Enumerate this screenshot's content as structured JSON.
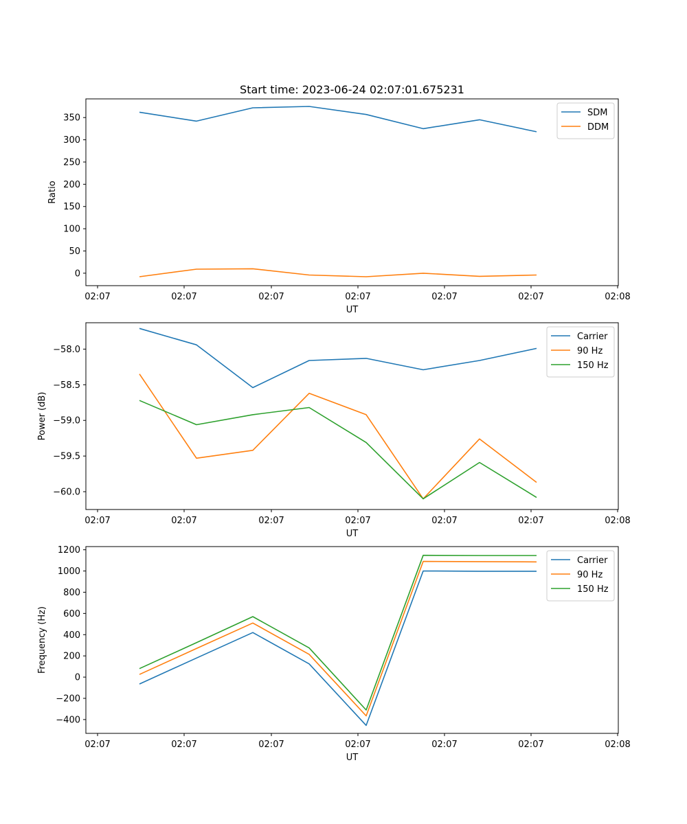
{
  "chart_data": [
    {
      "type": "line",
      "title": "Start time: 2023-06-24 02:07:01.675231",
      "xlabel": "UT",
      "ylabel": "Ratio",
      "x_tick_labels": [
        "02:07",
        "02:07",
        "02:07",
        "02:07",
        "02:07",
        "02:07",
        "02:07",
        "02:08"
      ],
      "yticks": [
        0,
        50,
        100,
        150,
        200,
        250,
        300,
        350
      ],
      "ylim": [
        -28,
        392
      ],
      "legend": "top-right",
      "grid": false,
      "series": [
        {
          "name": "SDM",
          "color": "#1f77b4",
          "values": [
            362,
            342,
            372,
            375,
            357,
            325,
            345,
            318
          ]
        },
        {
          "name": "DDM",
          "color": "#ff7f0e",
          "values": [
            -8,
            9,
            10,
            -4,
            -8,
            0,
            -7,
            -4
          ]
        }
      ]
    },
    {
      "type": "line",
      "title": "",
      "xlabel": "UT",
      "ylabel": "Power (dB)",
      "x_tick_labels": [
        "02:07",
        "02:07",
        "02:07",
        "02:07",
        "02:07",
        "02:07",
        "02:07",
        "02:08"
      ],
      "yticks": [
        -58.0,
        -58.5,
        -59.0,
        -59.5,
        -60.0
      ],
      "ytick_labels": [
        "−58.0",
        "−58.5",
        "−59.0",
        "−59.5",
        "−60.0"
      ],
      "ylim": [
        -60.25,
        -57.63
      ],
      "legend": "top-right",
      "grid": false,
      "series": [
        {
          "name": "Carrier",
          "color": "#1f77b4",
          "values": [
            -57.71,
            -57.94,
            -58.54,
            -58.16,
            -58.13,
            -58.29,
            -58.16,
            -57.99
          ]
        },
        {
          "name": "90 Hz",
          "color": "#ff7f0e",
          "values": [
            -58.35,
            -59.53,
            -59.42,
            -58.62,
            -58.92,
            -60.1,
            -59.26,
            -59.87
          ]
        },
        {
          "name": "150 Hz",
          "color": "#2ca02c",
          "values": [
            -58.72,
            -59.06,
            -58.92,
            -58.82,
            -59.31,
            -60.1,
            -59.59,
            -60.08
          ]
        }
      ]
    },
    {
      "type": "line",
      "title": "",
      "xlabel": "UT",
      "ylabel": "Frequency (Hz)",
      "x_tick_labels": [
        "02:07",
        "02:07",
        "02:07",
        "02:07",
        "02:07",
        "02:07",
        "02:07",
        "02:08"
      ],
      "yticks": [
        -400,
        -200,
        0,
        200,
        400,
        600,
        800,
        1000,
        1200
      ],
      "ytick_labels": [
        "−400",
        "−200",
        "0",
        "200",
        "400",
        "600",
        "800",
        "1000",
        "1200"
      ],
      "ylim": [
        -530,
        1230
      ],
      "legend": "top-right",
      "grid": false,
      "series": [
        {
          "name": "Carrier",
          "color": "#1f77b4",
          "values": [
            -65,
            180,
            420,
            125,
            -455,
            1000,
            998,
            998
          ]
        },
        {
          "name": "90 Hz",
          "color": "#ff7f0e",
          "values": [
            25,
            270,
            510,
            215,
            -365,
            1090,
            1088,
            1086
          ]
        },
        {
          "name": "150 Hz",
          "color": "#2ca02c",
          "values": [
            80,
            325,
            570,
            275,
            -310,
            1148,
            1146,
            1146
          ]
        }
      ]
    }
  ]
}
